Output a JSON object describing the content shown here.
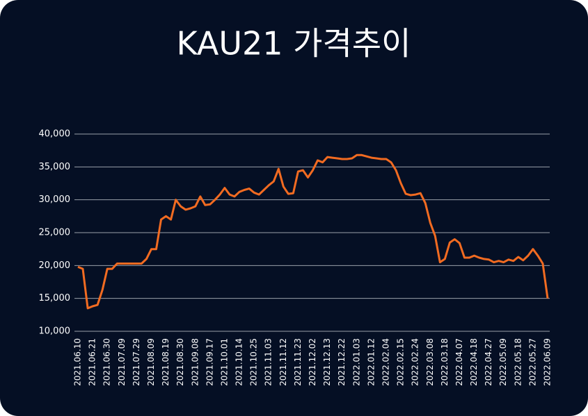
{
  "chart_data": {
    "type": "line",
    "title": "KAU21 가격추이",
    "categories": [
      "2021.06.10",
      null,
      null,
      "2021.06.21",
      null,
      null,
      "2021.06.30",
      null,
      null,
      "2021.07.09",
      null,
      null,
      "2021.07.29",
      null,
      null,
      "2021.08.09",
      null,
      null,
      "2021.08.19",
      null,
      null,
      "2021.08.30",
      null,
      null,
      "2021.09.08",
      null,
      null,
      "2021.09.17",
      null,
      null,
      "2021.10.01",
      null,
      null,
      "2021.10.14",
      null,
      null,
      "2021.10.25",
      null,
      null,
      "2021.11.03",
      null,
      null,
      "2021.11.12",
      null,
      null,
      "2021.11.23",
      null,
      null,
      "2021.12.02",
      null,
      null,
      "2021.12.13",
      null,
      null,
      "2021.12.22",
      null,
      null,
      "2022.01.03",
      null,
      null,
      "2022.01.12",
      null,
      null,
      "2022.02.04",
      null,
      null,
      "2022.02.15",
      null,
      null,
      "2022.02.24",
      null,
      null,
      "2022.03.08",
      null,
      null,
      "2022.03.18",
      null,
      null,
      "2022.04.07",
      null,
      null,
      "2022.04.18",
      null,
      null,
      "2022.04.27",
      null,
      null,
      "2022.05.09",
      null,
      null,
      "2022.05.18",
      null,
      null,
      "2022.05.27",
      null,
      null,
      "2022.06.09"
    ],
    "values": [
      19800,
      19500,
      13500,
      13800,
      14000,
      16300,
      19500,
      19500,
      20300,
      20300,
      20300,
      20300,
      20300,
      20300,
      21000,
      22500,
      22500,
      27000,
      27500,
      27000,
      30000,
      29000,
      28500,
      28700,
      29000,
      30500,
      29200,
      29300,
      30000,
      30800,
      31800,
      30800,
      30500,
      31200,
      31500,
      31700,
      31100,
      30800,
      31500,
      32200,
      32800,
      34700,
      32000,
      30900,
      31000,
      34300,
      34500,
      33400,
      34500,
      36000,
      35700,
      36500,
      36400,
      36300,
      36200,
      36200,
      36300,
      36800,
      36800,
      36600,
      36400,
      36300,
      36200,
      36200,
      35700,
      34500,
      32500,
      30900,
      30700,
      30800,
      31000,
      29500,
      26500,
      24500,
      20500,
      21000,
      23500,
      24000,
      23400,
      21200,
      21200,
      21500,
      21200,
      21000,
      20900,
      20500,
      20700,
      20500,
      20900,
      20700,
      21300,
      20800,
      21500,
      22500,
      21500,
      20300,
      15000
    ],
    "color": "#f26b21",
    "ylim": [
      10000,
      40000
    ],
    "yticks": [
      {
        "value": 10000,
        "label": "10,000"
      },
      {
        "value": 15000,
        "label": "15,000"
      },
      {
        "value": 20000,
        "label": "20,000"
      },
      {
        "value": 25000,
        "label": "25,000"
      },
      {
        "value": 30000,
        "label": "30,000"
      },
      {
        "value": 35000,
        "label": "35,000"
      },
      {
        "value": 40000,
        "label": "40,000"
      }
    ],
    "grid": true
  }
}
